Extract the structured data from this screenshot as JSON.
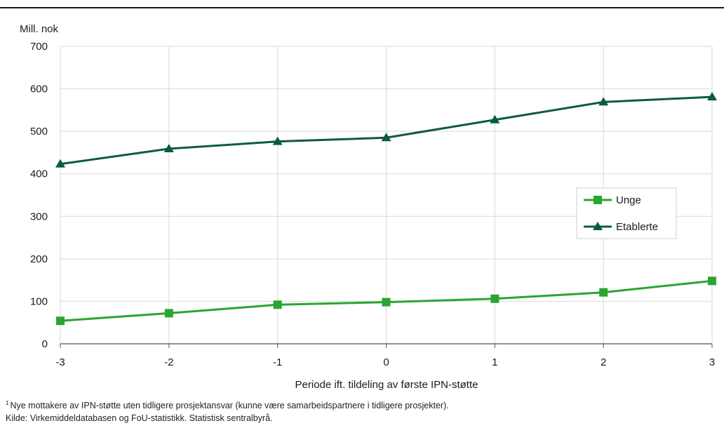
{
  "chart_data": {
    "type": "line",
    "ylabel": "Mill. nok",
    "xlabel": "Periode ift. tildeling av første IPN-støtte",
    "x": [
      -3,
      -2,
      -1,
      0,
      1,
      2,
      3
    ],
    "x_tick_labels": [
      "-3",
      "-2",
      "-1",
      "0",
      "1",
      "2",
      "3"
    ],
    "ylim": [
      0,
      700
    ],
    "y_ticks": [
      0,
      100,
      200,
      300,
      400,
      500,
      600,
      700
    ],
    "grid": true,
    "legend_position": "right",
    "series": [
      {
        "name": "Unge",
        "color": "#2aa532",
        "marker": "square",
        "values": [
          54,
          72,
          92,
          98,
          106,
          121,
          148
        ]
      },
      {
        "name": "Etablerte",
        "color": "#0d5a43",
        "marker": "triangle",
        "values": [
          423,
          459,
          476,
          485,
          527,
          569,
          581
        ]
      }
    ]
  },
  "footnotes": {
    "note_marker": "1",
    "note_text": "Nye mottakere av IPN-støtte uten tidligere prosjektansvar (kunne være samarbeidspartnere i tidligere prosjekter).",
    "source": "Kilde: Virkemiddeldatabasen og FoU-statistikk. Statistisk sentralbyrå."
  }
}
